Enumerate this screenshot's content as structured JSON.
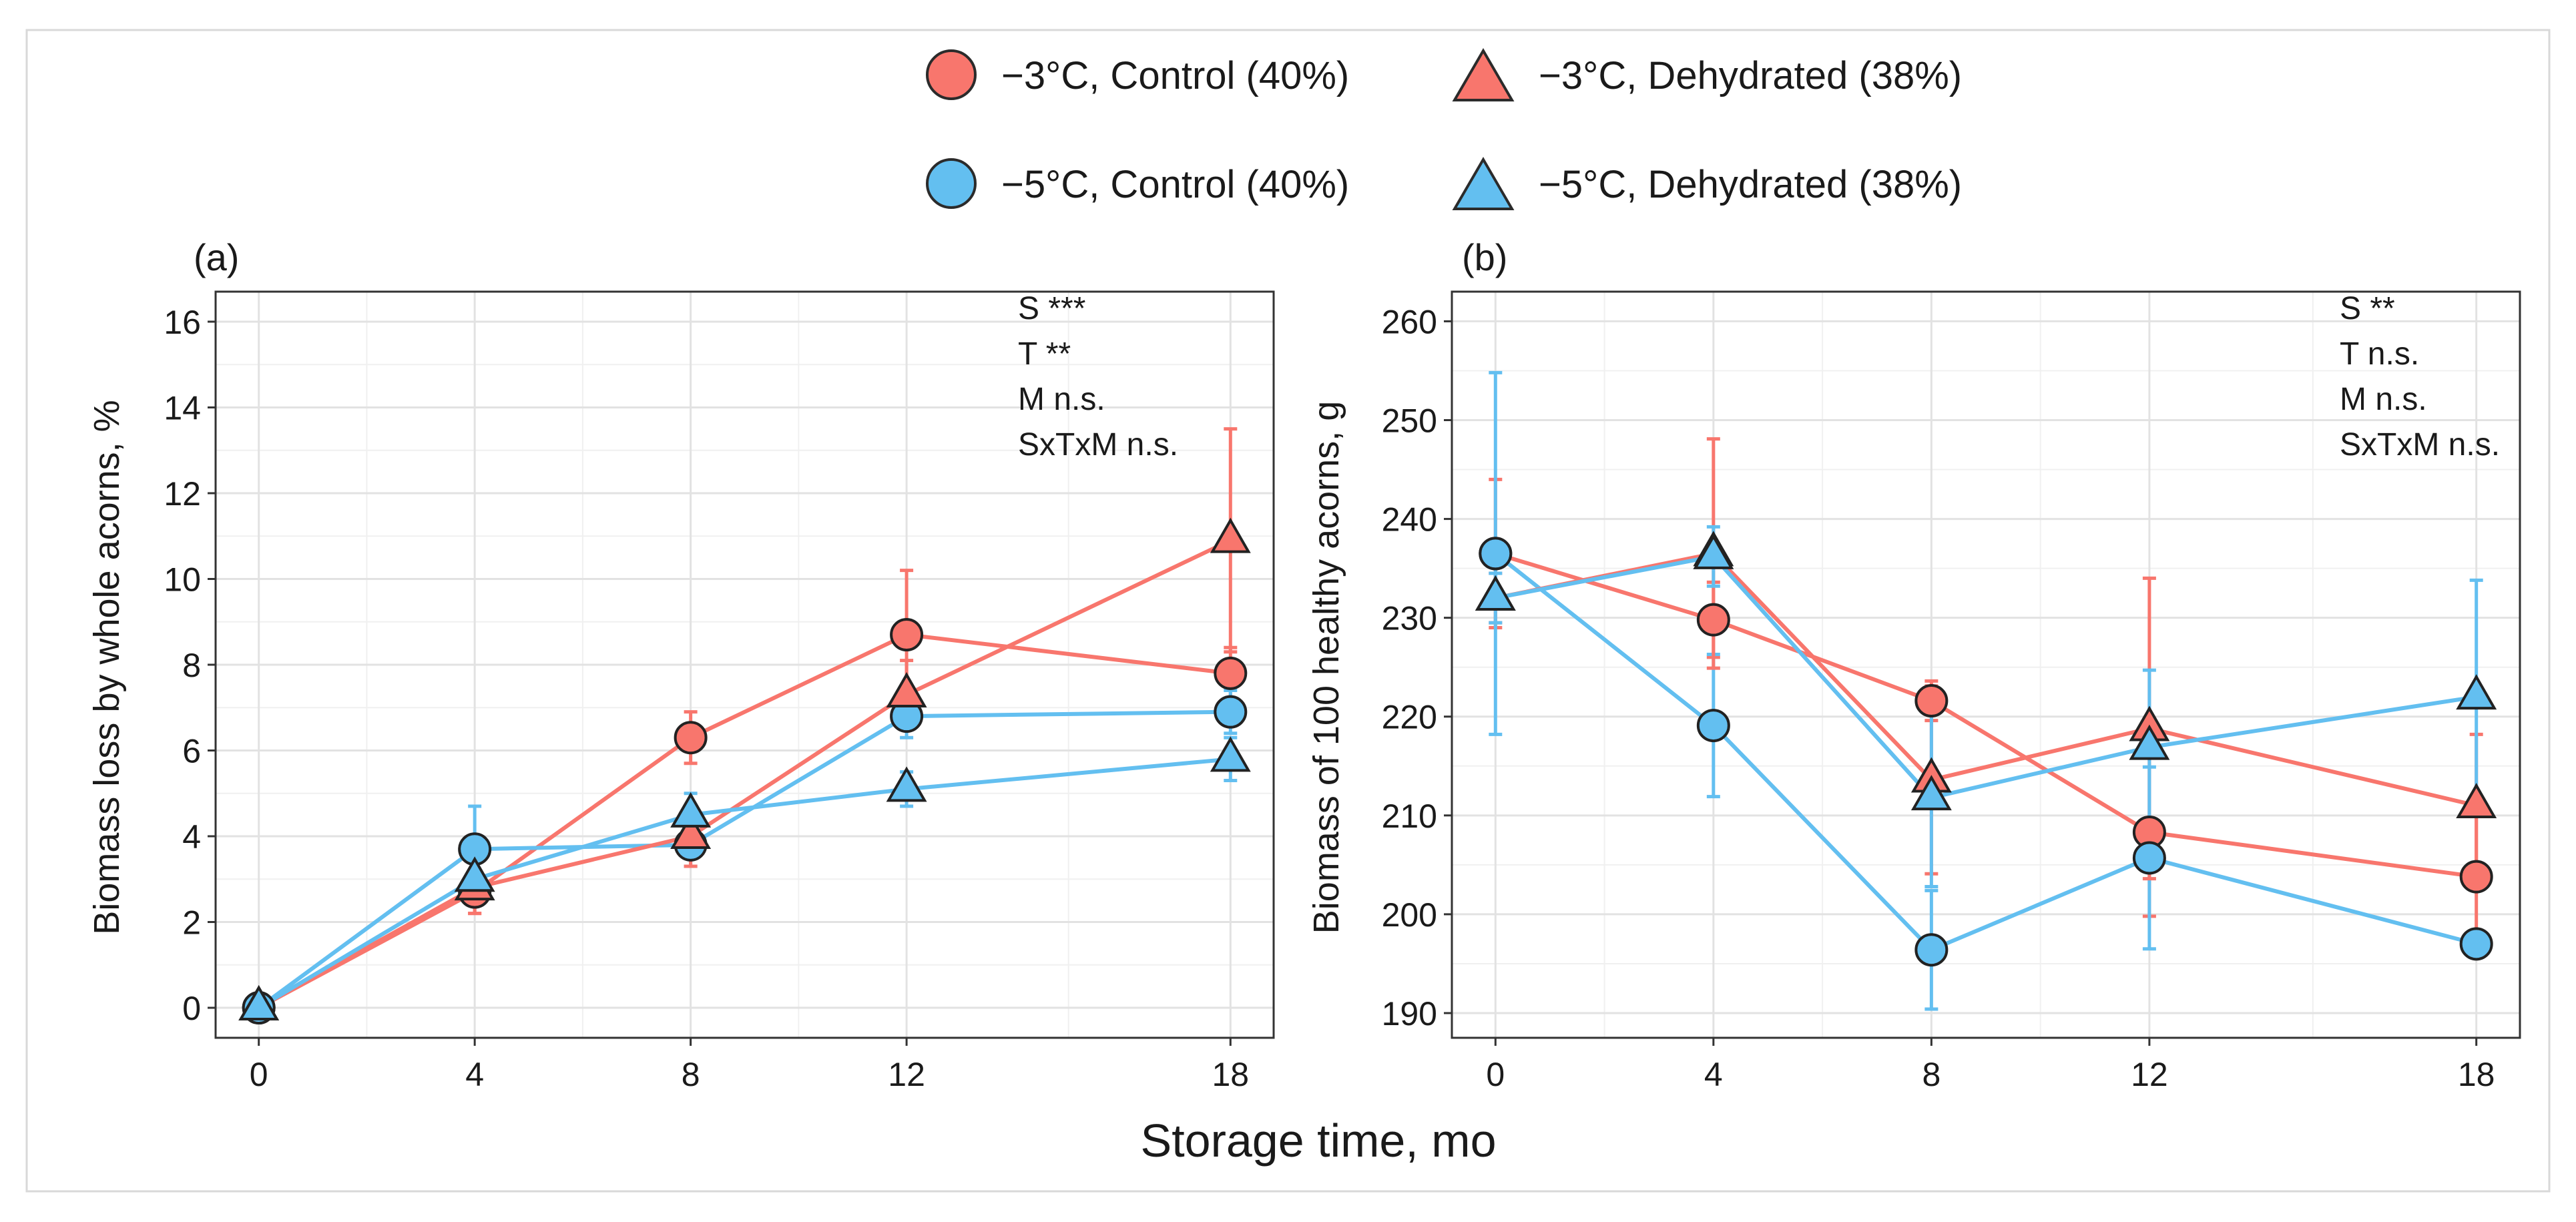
{
  "legend": {
    "items": [
      {
        "label": "−3°C, Control (40%)",
        "color": "#f8766d",
        "shape": "circle"
      },
      {
        "label": "−3°C, Dehydrated (38%)",
        "color": "#f8766d",
        "shape": "triangle"
      },
      {
        "label": "−5°C, Control (40%)",
        "color": "#63bff0",
        "shape": "circle"
      },
      {
        "label": "−5°C, Dehydrated (38%)",
        "color": "#63bff0",
        "shape": "triangle"
      }
    ]
  },
  "shared_xlabel": "Storage time, mo",
  "chart_data": [
    {
      "type": "line",
      "panel_label": "(a)",
      "title": "",
      "xlabel": "Storage time, mo",
      "ylabel": "Biomass loss by whole acorns, %",
      "x": [
        0,
        4,
        8,
        12,
        18
      ],
      "xticks": [
        0,
        4,
        8,
        12,
        18
      ],
      "xlim": [
        -0.8,
        18.8
      ],
      "ylim": [
        -0.7,
        16.7
      ],
      "yticks": [
        0,
        2,
        4,
        6,
        8,
        10,
        12,
        14,
        16
      ],
      "grid": true,
      "stats": [
        "S ***",
        "T **",
        "M n.s.",
        "SxTxM n.s."
      ],
      "series": [
        {
          "name": "−3°C, Control (40%)",
          "color": "#f8766d",
          "marker": "circle",
          "values": [
            0.0,
            2.7,
            6.3,
            8.7,
            7.8
          ],
          "err": [
            0.0,
            0.5,
            0.6,
            1.5,
            0.6
          ]
        },
        {
          "name": "−5°C, Control (40%)",
          "color": "#63bff0",
          "marker": "circle",
          "values": [
            0.0,
            3.7,
            3.8,
            6.8,
            6.9
          ],
          "err": [
            0.0,
            1.0,
            0.5,
            0.5,
            0.5
          ]
        },
        {
          "name": "−3°C, Dehydrated (38%)",
          "color": "#f8766d",
          "marker": "triangle",
          "values": [
            0.0,
            2.8,
            4.0,
            7.3,
            10.9
          ],
          "err": [
            0.0,
            0.6,
            0.7,
            0.8,
            2.6
          ]
        },
        {
          "name": "−5°C, Dehydrated (38%)",
          "color": "#63bff0",
          "marker": "triangle",
          "values": [
            0.0,
            3.0,
            4.5,
            5.1,
            5.8
          ],
          "err": [
            0.0,
            0.5,
            0.5,
            0.4,
            0.5
          ]
        }
      ]
    },
    {
      "type": "line",
      "panel_label": "(b)",
      "title": "",
      "xlabel": "Storage time, mo",
      "ylabel": "Biomass of 100 healthy acorns, g",
      "x": [
        0,
        4,
        8,
        12,
        18
      ],
      "xticks": [
        0,
        4,
        8,
        12,
        18
      ],
      "xlim": [
        -0.8,
        18.8
      ],
      "ylim": [
        187.5,
        263.0
      ],
      "yticks": [
        190,
        200,
        210,
        220,
        230,
        240,
        250,
        260
      ],
      "grid": true,
      "stats": [
        "S **",
        "T n.s.",
        "M n.s.",
        "SxTxM n.s."
      ],
      "series": [
        {
          "name": "−3°C, Control (40%)",
          "color": "#f8766d",
          "marker": "circle",
          "values": [
            236.5,
            229.8,
            221.6,
            208.3,
            203.8
          ],
          "err": [
            7.5,
            3.8,
            2.0,
            8.5,
            7.5
          ]
        },
        {
          "name": "−5°C, Control (40%)",
          "color": "#63bff0",
          "marker": "circle",
          "values": [
            236.5,
            219.1,
            196.4,
            205.7,
            197.0
          ],
          "err": [
            18.3,
            7.2,
            6.0,
            9.2,
            0.8
          ]
        },
        {
          "name": "−3°C, Dehydrated (38%)",
          "color": "#f8766d",
          "marker": "triangle",
          "values": [
            232.0,
            236.5,
            213.6,
            218.8,
            211.0
          ],
          "err": [
            2.5,
            11.6,
            9.5,
            15.2,
            7.2
          ]
        },
        {
          "name": "−5°C, Dehydrated (38%)",
          "color": "#63bff0",
          "marker": "triangle",
          "values": [
            232.0,
            236.2,
            211.8,
            216.9,
            222.0
          ],
          "err": [
            2.5,
            3.0,
            9.0,
            7.8,
            11.8
          ]
        }
      ]
    }
  ]
}
